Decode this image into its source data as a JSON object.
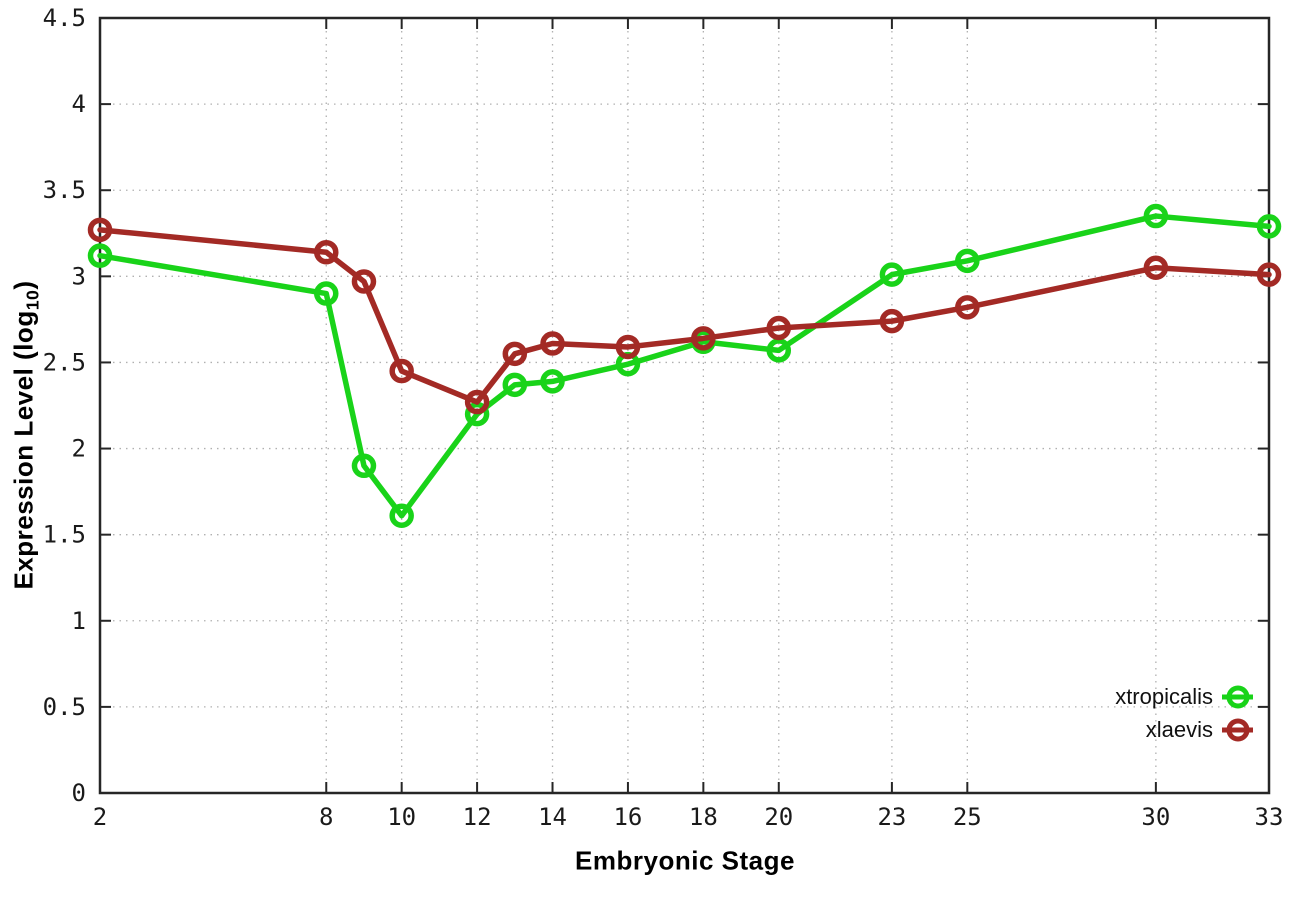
{
  "chart_data": {
    "type": "line",
    "title": "",
    "xlabel": "Embryonic Stage",
    "ylabel": "Expression Level (log10)",
    "ylabel_parts": {
      "prefix": "Expression Level (log",
      "sub": "10",
      "suffix": ")"
    },
    "xlim": [
      2,
      33
    ],
    "ylim": [
      0,
      4.5
    ],
    "xticks": [
      2,
      8,
      10,
      12,
      14,
      16,
      18,
      20,
      23,
      25,
      30,
      33
    ],
    "yticks": [
      0,
      0.5,
      1,
      1.5,
      2,
      2.5,
      3,
      3.5,
      4,
      4.5
    ],
    "grid": true,
    "legend_position": "inside-bottom-right",
    "x": [
      2,
      8,
      9,
      10,
      12,
      13,
      14,
      16,
      18,
      20,
      23,
      25,
      30,
      33
    ],
    "series": [
      {
        "name": "xtropicalis",
        "color": "#19d319",
        "marker": "open-circle",
        "values": [
          3.12,
          2.9,
          1.9,
          1.61,
          2.2,
          2.37,
          2.39,
          2.49,
          2.62,
          2.57,
          3.01,
          3.09,
          3.35,
          3.29
        ]
      },
      {
        "name": "xlaevis",
        "color": "#a32a25",
        "marker": "open-circle",
        "values": [
          3.27,
          3.14,
          2.97,
          2.45,
          2.27,
          2.55,
          2.61,
          2.59,
          2.64,
          2.7,
          2.74,
          2.82,
          3.05,
          3.01
        ]
      }
    ]
  }
}
